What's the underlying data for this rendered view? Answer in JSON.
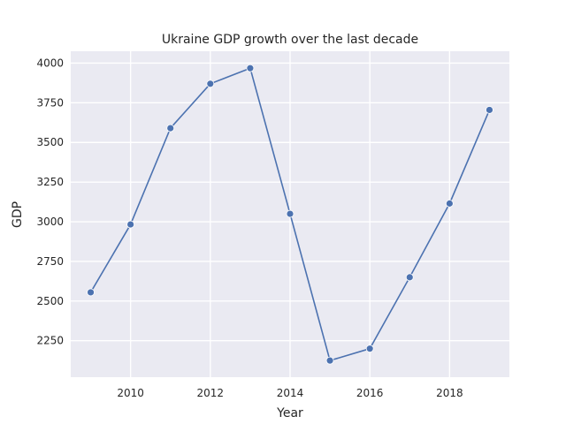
{
  "chart_data": {
    "type": "line",
    "title": "Ukraine GDP growth over the last decade",
    "xlabel": "Year",
    "ylabel": "GDP",
    "x": [
      2009,
      2010,
      2011,
      2012,
      2013,
      2014,
      2015,
      2016,
      2017,
      2018,
      2019
    ],
    "series": [
      {
        "values": [
          2555,
          2983,
          3590,
          3870,
          3968,
          3050,
          2125,
          2200,
          2650,
          3115,
          3705
        ]
      }
    ],
    "xlim": [
      2008.5,
      2019.5
    ],
    "ylim": [
      2020,
      4075
    ],
    "xticks": [
      2010,
      2012,
      2014,
      2016,
      2018
    ],
    "yticks": [
      2250,
      2500,
      2750,
      3000,
      3250,
      3500,
      3750,
      4000
    ],
    "grid": true,
    "colors": {
      "background": "#eaeaf2",
      "grid": "#ffffff",
      "line": "#4c72b0",
      "marker_edge": "#ffffff"
    }
  }
}
